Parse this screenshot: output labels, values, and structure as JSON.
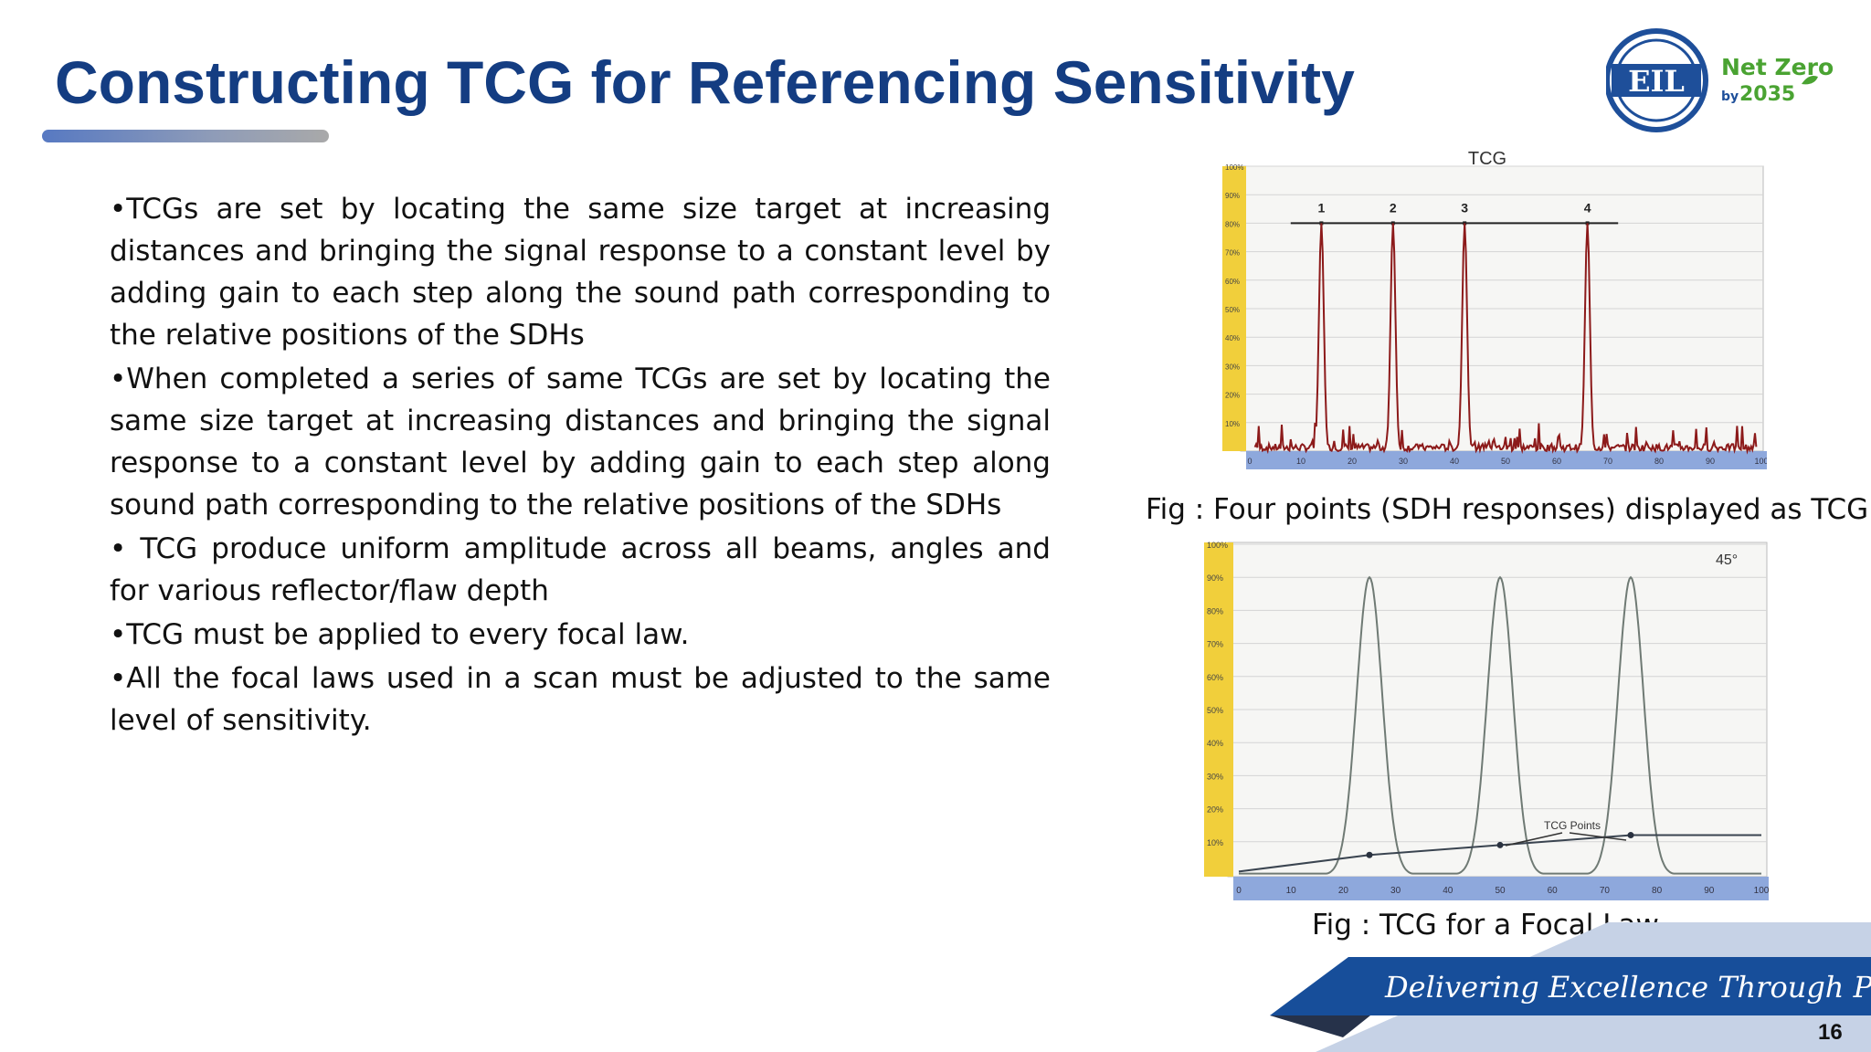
{
  "slide": {
    "title": "Constructing TCG for Referencing Sensitivity",
    "page_number": "16",
    "tagline": "Delivering Excellence Through People"
  },
  "logo": {
    "icon": "eil-logo-icon",
    "brand": "EIL",
    "net_zero": "Net Zero",
    "by": "by",
    "year": "2035",
    "colors": {
      "brand_blue": "#1e4f9a",
      "green": "#4aa332"
    }
  },
  "bullets": [
    "•TCGs are set by locating the same size  target at increasing distances and  bringing the signal response to a  constant level by adding gain to each  step along the sound  path  corresponding to the relative positions  of the SDHs",
    "•When completed a series of same TCGs are set by locating the same size  target at increasing distances and  bringing the signal response to a  constant level by adding gain to each  step along sound  path  corresponding to the relative positions  of the SDHs",
    "• TCG produce uniform amplitude across all beams, angles and for various reflector/flaw depth",
    "•TCG must be applied to every focal law.",
    "•All the focal laws used in a scan must be adjusted to the same level of sensitivity."
  ],
  "figures": {
    "fig1": {
      "title": "TCG",
      "caption": "Fig : Four points (SDH responses)  displayed as TCG",
      "y_ticks": [
        "100%",
        "90%",
        "80%",
        "70%",
        "60%",
        "50%",
        "40%",
        "30%",
        "20%",
        "10%"
      ],
      "x_ticks": [
        "0",
        "10",
        "20",
        "30",
        "40",
        "50",
        "60",
        "70",
        "80",
        "90",
        "100"
      ],
      "point_labels": [
        "1",
        "2",
        "3",
        "4"
      ],
      "peaks_x": [
        14,
        28,
        42,
        66
      ],
      "peak_level": 80
    },
    "fig2": {
      "caption": "Fig : TCG for a Focal Law",
      "angle_label": "45°",
      "annotation": "TCG Points",
      "y_ticks": [
        "100%",
        "90%",
        "80%",
        "70%",
        "60%",
        "50%",
        "40%",
        "30%",
        "20%",
        "10%"
      ],
      "x_ticks": [
        "0",
        "10",
        "20",
        "30",
        "40",
        "50",
        "60",
        "70",
        "80",
        "90",
        "100"
      ],
      "peaks_x": [
        25,
        50,
        75
      ],
      "peak_level": 90,
      "tcg_points": [
        {
          "x": 25,
          "y": 6
        },
        {
          "x": 50,
          "y": 9
        },
        {
          "x": 75,
          "y": 12
        }
      ]
    }
  },
  "colors": {
    "title": "#143d82",
    "trace_red": "#8c1a1a",
    "trace_gray": "#6f7a74",
    "axis_yellow": "#f1cf3b",
    "axis_blue": "#8ea8dc",
    "footer_blue": "#174e9a",
    "footer_light": "#c6d2e6"
  }
}
